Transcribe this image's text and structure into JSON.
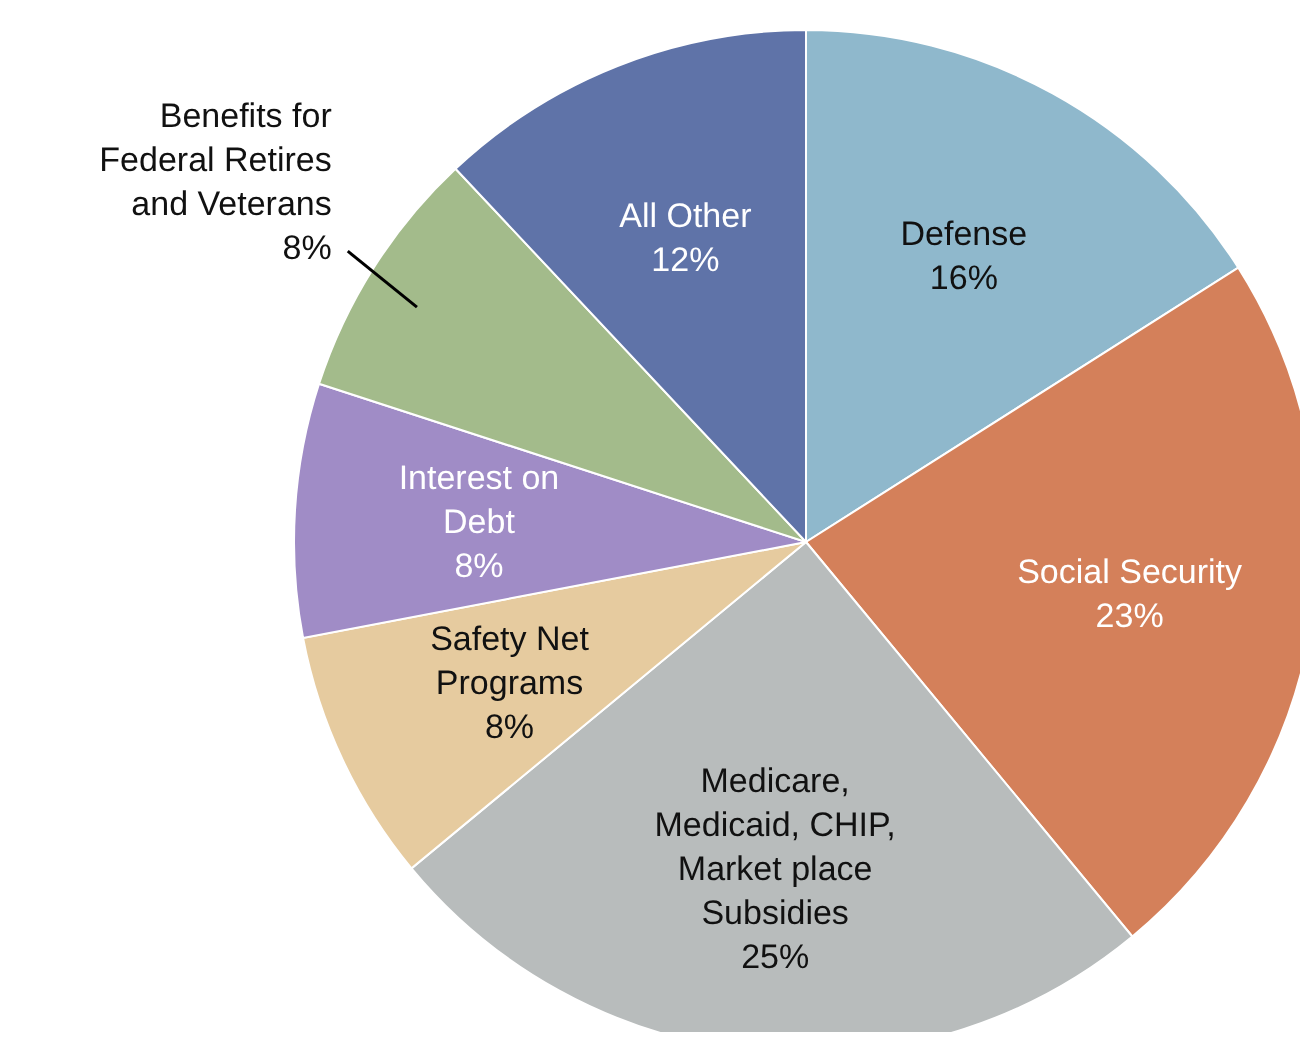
{
  "chart_data": {
    "type": "pie",
    "categories": [
      "Defense",
      "Social Security",
      "Medicare, Medicaid, CHIP, Market place Subsidies",
      "Safety Net Programs",
      "Interest on Debt",
      "Benefits for Federal Retires and Veterans",
      "All Other"
    ],
    "values": [
      16,
      23,
      25,
      8,
      8,
      8,
      12
    ],
    "value_labels": [
      "16%",
      "23%",
      "25%",
      "8%",
      "8%",
      "8%",
      "12%"
    ],
    "colors": [
      "#8fb8cc",
      "#d4805a",
      "#b8bcbc",
      "#e6cb9f",
      "#a08cc6",
      "#a3bb8b",
      "#5f73a8"
    ]
  }
}
